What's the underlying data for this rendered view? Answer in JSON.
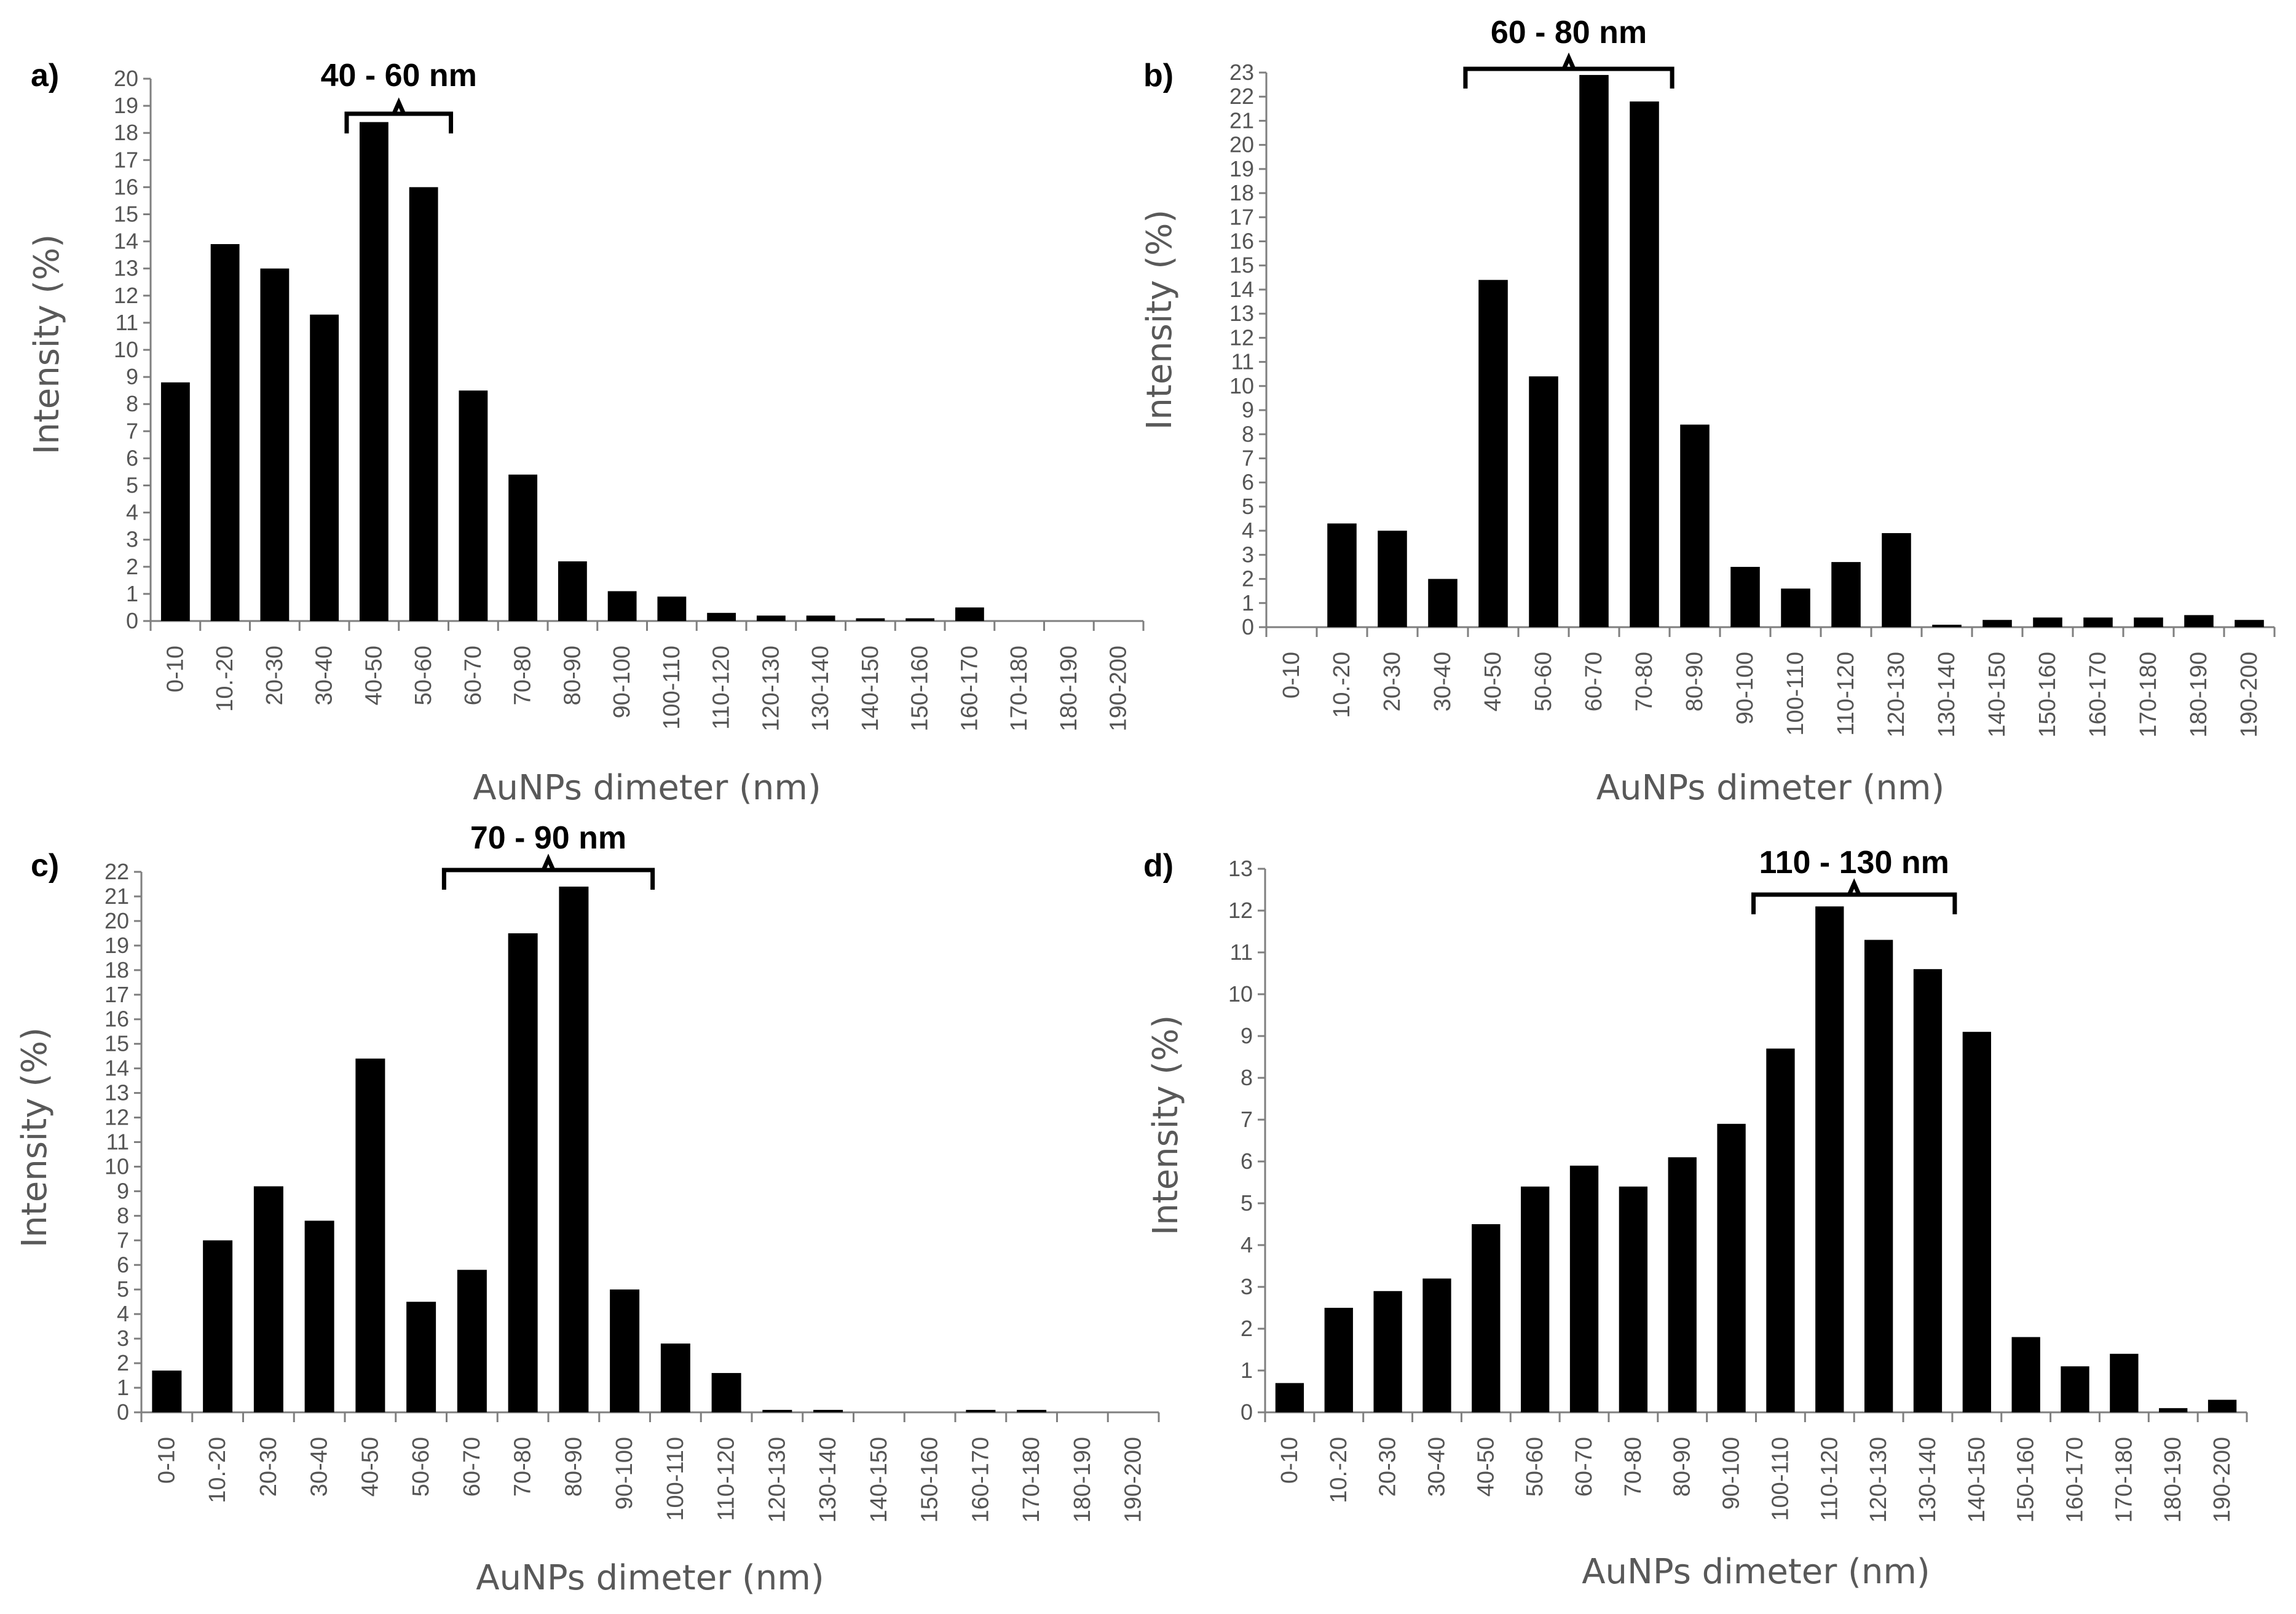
{
  "chart_data": [
    {
      "type": "bar",
      "panel": "a)",
      "categories": [
        "0-10",
        "10.-20",
        "20-30",
        "30-40",
        "40-50",
        "50-60",
        "60-70",
        "70-80",
        "80-90",
        "90-100",
        "100-110",
        "110-120",
        "120-130",
        "130-140",
        "140-150",
        "150-160",
        "160-170",
        "170-180",
        "180-190",
        "190-200"
      ],
      "values": [
        8.8,
        13.9,
        13.0,
        11.3,
        18.4,
        16.0,
        8.5,
        5.4,
        2.2,
        1.1,
        0.9,
        0.3,
        0.2,
        0.2,
        0.1,
        0.1,
        0.5,
        0,
        0,
        0
      ],
      "xlabel": "AuNPs dimeter (nm)",
      "ylabel": "Intensity (%)",
      "ylim": [
        0,
        20
      ],
      "annotation": "40 - 60 nm"
    },
    {
      "type": "bar",
      "panel": "b)",
      "categories": [
        "0-10",
        "10.-20",
        "20-30",
        "30-40",
        "40-50",
        "50-60",
        "60-70",
        "70-80",
        "80-90",
        "90-100",
        "100-110",
        "110-120",
        "120-130",
        "130-140",
        "140-150",
        "150-160",
        "160-170",
        "170-180",
        "180-190",
        "190-200"
      ],
      "values": [
        0,
        4.3,
        4.0,
        2.0,
        14.4,
        10.4,
        22.9,
        21.8,
        8.4,
        2.5,
        1.6,
        2.7,
        3.9,
        0.1,
        0.3,
        0.4,
        0.4,
        0.4,
        0.5,
        0.3
      ],
      "xlabel": "AuNPs dimeter (nm)",
      "ylabel": "Intensity (%)",
      "ylim": [
        0,
        23
      ],
      "annotation": "60 - 80 nm"
    },
    {
      "type": "bar",
      "panel": "c)",
      "categories": [
        "0-10",
        "10.-20",
        "20-30",
        "30-40",
        "40-50",
        "50-60",
        "60-70",
        "70-80",
        "80-90",
        "90-100",
        "100-110",
        "110-120",
        "120-130",
        "130-140",
        "140-150",
        "150-160",
        "160-170",
        "170-180",
        "180-190",
        "190-200"
      ],
      "values": [
        1.7,
        7.0,
        9.2,
        7.8,
        14.4,
        4.5,
        5.8,
        19.5,
        21.4,
        5.0,
        2.8,
        1.6,
        0.1,
        0.1,
        0,
        0,
        0.1,
        0.1,
        0,
        0
      ],
      "xlabel": "AuNPs dimeter (nm)",
      "ylabel": "Intensity (%)",
      "ylim": [
        0,
        22
      ],
      "annotation": "70 - 90 nm"
    },
    {
      "type": "bar",
      "panel": "d)",
      "categories": [
        "0-10",
        "10.-20",
        "20-30",
        "30-40",
        "40-50",
        "50-60",
        "60-70",
        "70-80",
        "80-90",
        "90-100",
        "100-110",
        "110-120",
        "120-130",
        "130-140",
        "140-150",
        "150-160",
        "160-170",
        "170-180",
        "180-190",
        "190-200"
      ],
      "values": [
        0.7,
        2.5,
        2.9,
        3.2,
        4.5,
        5.4,
        5.9,
        5.4,
        6.1,
        6.9,
        8.7,
        12.1,
        11.3,
        10.6,
        9.1,
        1.8,
        1.1,
        1.4,
        0.1,
        0.3
      ],
      "xlabel": "AuNPs dimeter (nm)",
      "ylabel": "Intensity (%)",
      "ylim": [
        0,
        13
      ],
      "annotation": "110 - 130 nm"
    }
  ]
}
